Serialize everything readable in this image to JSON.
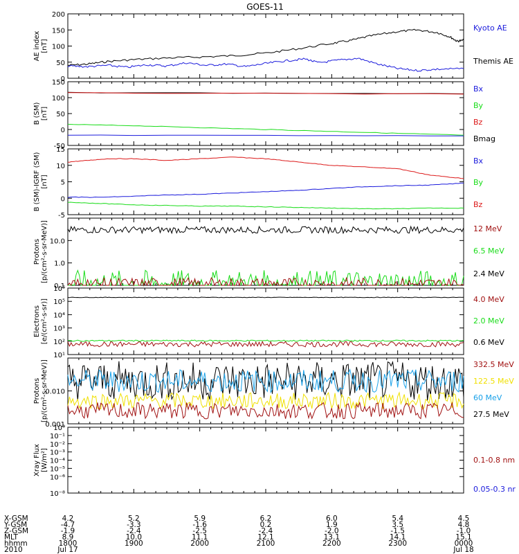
{
  "title": "GOES-11",
  "colors": {
    "black": "#000000",
    "blue": "#1a1adc",
    "green": "#18dc18",
    "red": "#dc1818",
    "darkred": "#a01010",
    "cyan": "#18a0e8",
    "yellow": "#f0e000"
  },
  "chart_data": [
    {
      "type": "line",
      "panel": "ae",
      "ylabel": [
        "AE index",
        "[nT]"
      ],
      "ylim": [
        0,
        200
      ],
      "yticks": [
        "0",
        "50",
        "100",
        "150",
        "200"
      ],
      "ytick_values": [
        0,
        50,
        100,
        150,
        200
      ],
      "legend": [
        {
          "label": "Kyoto AE",
          "color": "blue"
        },
        {
          "label": "Themis AE",
          "color": "black"
        }
      ],
      "series": [
        {
          "name": "Themis AE",
          "color": "black",
          "x": [
            0,
            0.3,
            0.6,
            1.0,
            1.5,
            2.0,
            2.5,
            3.0,
            3.5,
            4.0,
            4.3,
            4.6,
            5.0,
            5.3,
            5.6,
            5.8,
            5.9,
            6.0
          ],
          "y": [
            40,
            44,
            52,
            58,
            63,
            66,
            70,
            78,
            92,
            108,
            118,
            132,
            145,
            150,
            142,
            128,
            115,
            118
          ]
        },
        {
          "name": "Kyoto AE",
          "color": "blue",
          "x": [
            0,
            0.3,
            0.6,
            0.9,
            1.2,
            1.5,
            1.8,
            2.1,
            2.4,
            2.7,
            3.0,
            3.3,
            3.6,
            3.8,
            4.1,
            4.4,
            4.7,
            5.0,
            5.3,
            5.6,
            6.0
          ],
          "y": [
            38,
            36,
            40,
            34,
            42,
            38,
            48,
            40,
            44,
            36,
            46,
            54,
            60,
            48,
            56,
            62,
            44,
            30,
            24,
            28,
            30
          ]
        }
      ]
    },
    {
      "type": "line",
      "panel": "b",
      "ylabel": [
        "B (SM)",
        "[nT]"
      ],
      "ylim": [
        -50,
        150
      ],
      "yticks": [
        "-50",
        "0",
        "50",
        "100",
        "150"
      ],
      "ytick_values": [
        -50,
        0,
        50,
        100,
        150
      ],
      "legend": [
        {
          "label": "Bx",
          "color": "blue"
        },
        {
          "label": "By",
          "color": "green"
        },
        {
          "label": "Bz",
          "color": "red"
        },
        {
          "label": "Bmag",
          "color": "black"
        }
      ],
      "series": [
        {
          "name": "Bmag",
          "color": "black",
          "x": [
            0,
            6
          ],
          "y": [
            116,
            112
          ]
        },
        {
          "name": "Bz",
          "color": "red",
          "x": [
            0,
            6
          ],
          "y": [
            115,
            111
          ]
        },
        {
          "name": "By",
          "color": "green",
          "x": [
            0,
            1,
            2,
            3,
            4,
            5,
            6
          ],
          "y": [
            16,
            12,
            6,
            0,
            -6,
            -12,
            -18
          ]
        },
        {
          "name": "Bx",
          "color": "blue",
          "x": [
            0,
            6
          ],
          "y": [
            -18,
            -20
          ]
        }
      ]
    },
    {
      "type": "line",
      "panel": "db",
      "ylabel": [
        "B (SM)-IGRF (SM)",
        "[nT]"
      ],
      "ylim": [
        -5,
        15
      ],
      "yticks": [
        "-5",
        "0",
        "5",
        "10",
        "15"
      ],
      "ytick_values": [
        -5,
        0,
        5,
        10,
        15
      ],
      "legend": [
        {
          "label": "Bx",
          "color": "blue"
        },
        {
          "label": "By",
          "color": "green"
        },
        {
          "label": "Bz",
          "color": "red"
        }
      ],
      "series": [
        {
          "name": "Bz",
          "color": "red",
          "x": [
            0,
            0.3,
            0.6,
            1.0,
            1.5,
            2.0,
            2.5,
            3.0,
            3.5,
            4.0,
            4.5,
            5.0,
            5.5,
            6.0
          ],
          "y": [
            11,
            11.5,
            12,
            12,
            11.5,
            12,
            12.5,
            12,
            11,
            10,
            9.5,
            9,
            7,
            6
          ]
        },
        {
          "name": "Bx",
          "color": "blue",
          "x": [
            0,
            0.5,
            1,
            1.5,
            2,
            2.5,
            3,
            3.5,
            4,
            4.5,
            5,
            5.5,
            6
          ],
          "y": [
            0.3,
            0.3,
            0.6,
            1,
            1.2,
            1.6,
            2,
            2.4,
            3,
            3.5,
            3.8,
            4,
            4.6
          ]
        },
        {
          "name": "By",
          "color": "green",
          "x": [
            0,
            0.5,
            1,
            1.5,
            2,
            2.5,
            3,
            3.5,
            4,
            4.5,
            5,
            5.5,
            6
          ],
          "y": [
            -1.2,
            -1.6,
            -2,
            -2.2,
            -2.4,
            -2.4,
            -2.6,
            -2.8,
            -3,
            -3.2,
            -3.2,
            -3,
            -3
          ]
        }
      ]
    },
    {
      "type": "line",
      "panel": "protons1",
      "scale": "log",
      "ylabel": [
        "Protons",
        "[p/(cm²-s-sr-MeV)]"
      ],
      "ylim": [
        0.1,
        100
      ],
      "yticks": [
        "0.1",
        "1.0",
        "10.0"
      ],
      "ytick_values": [
        0.1,
        1,
        10
      ],
      "legend": [
        {
          "label": "12 MeV",
          "color": "darkred"
        },
        {
          "label": "6.5 MeV",
          "color": "green"
        },
        {
          "label": "2.4 MeV",
          "color": "black"
        }
      ],
      "series": [
        {
          "name": "2.4 MeV",
          "color": "black",
          "level": 30,
          "noise": 0.15
        },
        {
          "name": "6.5 MeV",
          "color": "green",
          "level": 0.12,
          "noise": 0.6
        },
        {
          "name": "12 MeV",
          "color": "darkred",
          "level": 0.11,
          "noise": 0.3
        }
      ]
    },
    {
      "type": "line",
      "panel": "electrons",
      "scale": "log",
      "ylabel": [
        "Electrons",
        "[e/(cm²-s-sr)]"
      ],
      "ylim": [
        10,
        1000000
      ],
      "yticks": [
        "10¹",
        "10²",
        "10³",
        "10⁴",
        "10⁵",
        "10⁶"
      ],
      "ytick_values": [
        10,
        100,
        1000,
        10000,
        100000,
        1000000
      ],
      "legend": [
        {
          "label": "4.0 MeV",
          "color": "darkred"
        },
        {
          "label": "2.0 MeV",
          "color": "green"
        },
        {
          "label": "0.6 MeV",
          "color": "black"
        }
      ],
      "series": [
        {
          "name": "0.6 MeV",
          "color": "black",
          "level": 200000,
          "noise": 0.02
        },
        {
          "name": "2.0 MeV",
          "color": "green",
          "level": 110,
          "noise": 0.05
        },
        {
          "name": "4.0 MeV",
          "color": "darkred",
          "level": 60,
          "noise": 0.2
        }
      ]
    },
    {
      "type": "line",
      "panel": "protons2",
      "scale": "log",
      "ylabel": [
        "Protons",
        "[p/(cm²-s-sr-MeV)]"
      ],
      "ylim": [
        0.001,
        0.1
      ],
      "yticks": [
        "0.001",
        "0.010"
      ],
      "ytick_values": [
        0.001,
        0.01
      ],
      "legend": [
        {
          "label": "332.5 MeV",
          "color": "darkred"
        },
        {
          "label": "122.5 MeV",
          "color": "yellow"
        },
        {
          "label": "60 MeV",
          "color": "cyan"
        },
        {
          "label": "27.5 MeV",
          "color": "black"
        }
      ],
      "series": [
        {
          "name": "27.5 MeV",
          "color": "black",
          "level": 0.02,
          "noise": 0.6
        },
        {
          "name": "60 MeV",
          "color": "cyan",
          "level": 0.02,
          "noise": 0.35
        },
        {
          "name": "122.5 MeV",
          "color": "yellow",
          "level": 0.005,
          "noise": 0.25
        },
        {
          "name": "332.5 MeV",
          "color": "darkred",
          "level": 0.0025,
          "noise": 0.25
        }
      ]
    },
    {
      "type": "line",
      "panel": "xray",
      "scale": "log",
      "ylabel": [
        "Xray Flux",
        "[W/m²]"
      ],
      "ylim": [
        1e-08,
        1
      ],
      "yticks": [
        "10⁻⁸",
        "10⁻⁶",
        "10⁻⁵",
        "10⁻⁴",
        "10⁻³",
        "10⁻²",
        "10⁻¹",
        "10⁰"
      ],
      "ytick_values": [
        1e-08,
        1e-06,
        1e-05,
        0.0001,
        0.001,
        0.01,
        0.1,
        1
      ],
      "legend": [
        {
          "label": "0.1-0.8 nm",
          "color": "darkred"
        },
        {
          "label": "0.05-0.3 nr",
          "color": "blue"
        }
      ],
      "series": []
    }
  ],
  "footer": {
    "row_labels": [
      "X-GSM",
      "Y-GSM",
      "Z-GSM",
      "MLT",
      "hhmm",
      "2010"
    ],
    "columns": [
      [
        "4.2",
        "-4.7",
        "-1.9",
        "8.9",
        "1800",
        "Jul 17"
      ],
      [
        "5.2",
        "-3.3",
        "-2.4",
        "10.0",
        "1900",
        ""
      ],
      [
        "5.9",
        "-1.6",
        "-2.5",
        "11.1",
        "2000",
        ""
      ],
      [
        "6.2",
        "0.2",
        "-2.4",
        "12.1",
        "2100",
        ""
      ],
      [
        "6.0",
        "1.9",
        "-2.0",
        "13.1",
        "2200",
        ""
      ],
      [
        "5.4",
        "3.5",
        "-1.5",
        "14.1",
        "2300",
        ""
      ],
      [
        "4.5",
        "4.8",
        "-1.0",
        "15.1",
        "0000",
        "Jul 18"
      ]
    ]
  }
}
